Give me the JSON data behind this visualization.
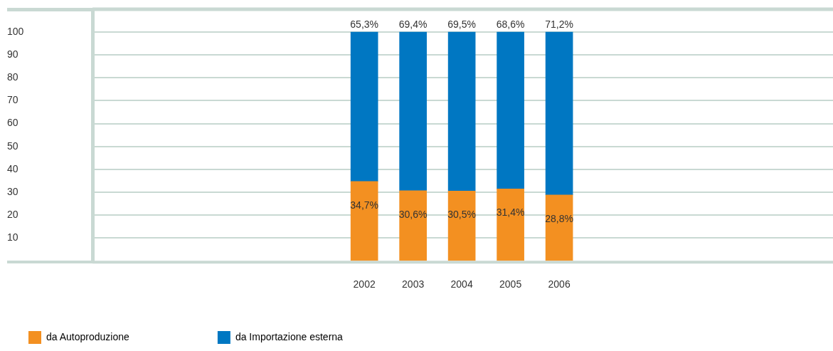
{
  "chart_data": {
    "type": "bar",
    "stacked": true,
    "x": [
      2002,
      2003,
      2004,
      2005,
      2006
    ],
    "xlim": [
      1996.42,
      2011.62
    ],
    "xticks": [
      2002,
      2003,
      2004,
      2005,
      2006
    ],
    "series": [
      {
        "name": "da Autoproduzione",
        "color": "#f39021",
        "values": [
          34.7,
          30.6,
          30.5,
          31.4,
          28.8
        ],
        "value_labels": [
          "34,7%",
          "30,6%",
          "30,5%",
          "31,4%",
          "28,8%"
        ]
      },
      {
        "name": "da Importazione esterna",
        "color": "#0077c2",
        "values": [
          65.3,
          69.4,
          69.5,
          68.6,
          71.2
        ],
        "value_labels": [
          "65,3%",
          "69,4%",
          "69,5%",
          "68,6%",
          "71,2%"
        ]
      }
    ],
    "ylim": [
      0,
      110
    ],
    "yticks": [
      10,
      20,
      30,
      40,
      50,
      60,
      70,
      80,
      90,
      100
    ],
    "grid": "y",
    "legend": "bottom left"
  }
}
